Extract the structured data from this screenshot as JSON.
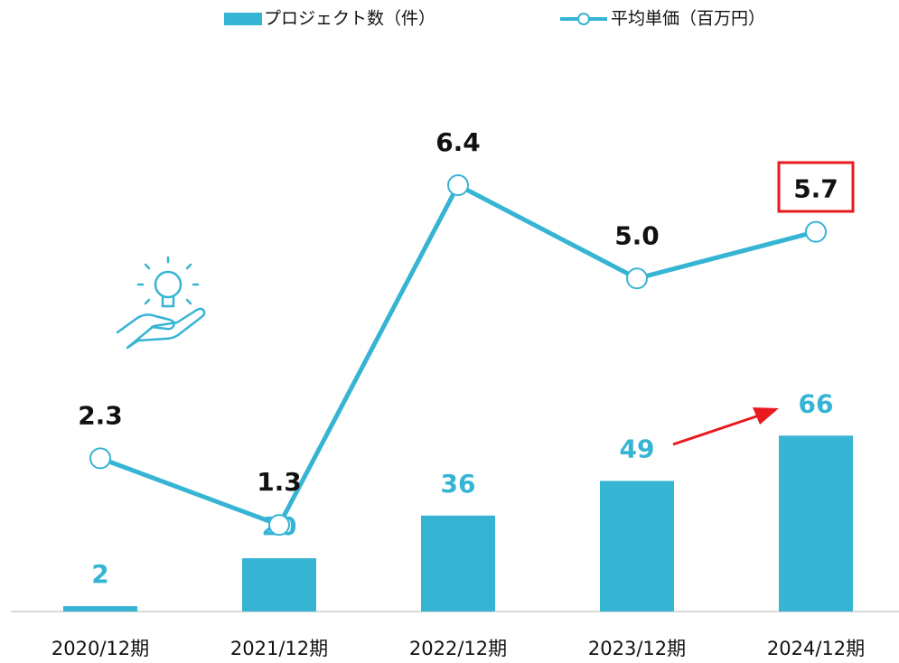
{
  "chart_data": {
    "type": "bar_line",
    "categories": [
      "2020/12期",
      "2021/12期",
      "2022/12期",
      "2023/12期",
      "2024/12期"
    ],
    "series": [
      {
        "name": "プロジェクト数（件）",
        "type": "bar",
        "color": "#36b4d4",
        "values": [
          2,
          20,
          36,
          49,
          66
        ]
      },
      {
        "name": "平均単価（百万円）",
        "type": "line",
        "axis": "y2",
        "color": "#36b4d4",
        "values": [
          2.3,
          1.3,
          6.4,
          5.0,
          5.7
        ],
        "value_labels": [
          "2.3",
          "1.3",
          "6.4",
          "5.0",
          "5.7"
        ]
      }
    ],
    "ylim": [
      0,
      200
    ],
    "y2lim": [
      0,
      8
    ],
    "grid": false,
    "legend": "top"
  }
}
